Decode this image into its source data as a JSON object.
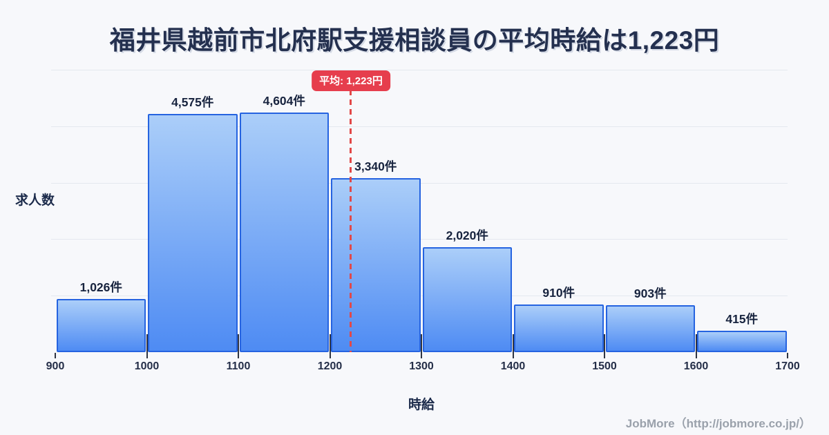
{
  "title": "福井県越前市北府駅支援相談員の平均時給は1,223円",
  "footer": "JobMore（http://jobmore.co.jp/）",
  "colors": {
    "background": "#f7f8fb",
    "title_text": "#24304f",
    "gridline": "#e4e8ef",
    "bar_border": "#2563e0",
    "bar_fill_top": "#abcef9",
    "bar_fill_bottom": "#4e8bf3",
    "average_badge_red": "#e63e4d",
    "average_line_red": "#e24848",
    "footer_text": "#9aa1ab"
  },
  "chart_data": {
    "type": "bar",
    "title": "福井県越前市北府駅支援相談員の平均時給は1,223円",
    "xlabel": "時給",
    "ylabel": "求人数",
    "bin_edges": [
      900,
      1000,
      1100,
      1200,
      1300,
      1400,
      1500,
      1600,
      1700
    ],
    "x_tick_labels": [
      "900",
      "1000",
      "1100",
      "1200",
      "1300",
      "1400",
      "1500",
      "1600",
      "1700"
    ],
    "values": [
      1026,
      4575,
      4604,
      3340,
      2020,
      910,
      903,
      415
    ],
    "value_labels": [
      "1,026件",
      "4,575件",
      "4,604件",
      "3,340件",
      "2,020件",
      "910件",
      "903件",
      "415件"
    ],
    "average": 1223,
    "average_label": "平均: 1,223円",
    "ylim": [
      0,
      5420
    ],
    "grid": true,
    "gridline_count": 5,
    "legend_position": "none"
  }
}
